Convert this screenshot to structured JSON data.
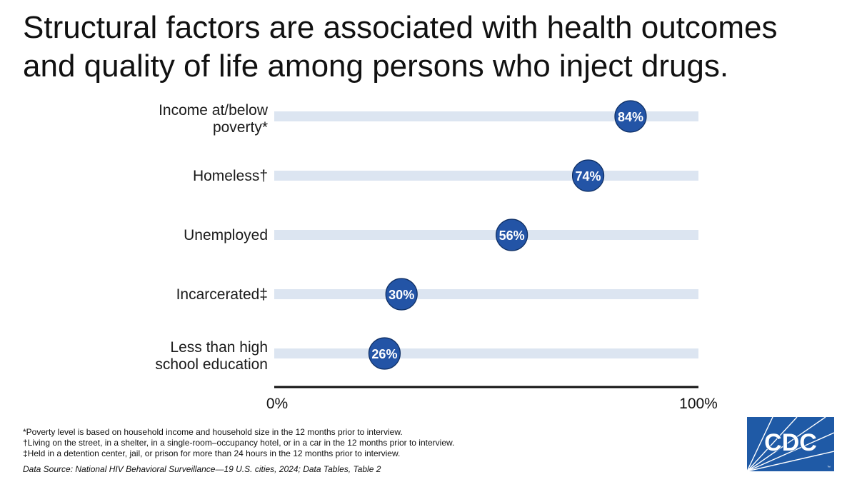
{
  "title_lines": [
    "Structural factors are associated with health outcomes",
    "and quality of life among persons who inject drugs."
  ],
  "chart_data": {
    "type": "dot",
    "categories": [
      [
        "Income at/below",
        "poverty*"
      ],
      [
        "Homeless†"
      ],
      [
        "Unemployed"
      ],
      [
        "Incarcerated‡"
      ],
      [
        "Less than high",
        "school education"
      ]
    ],
    "values": [
      84,
      74,
      56,
      30,
      26
    ],
    "data_labels": [
      "84%",
      "74%",
      "56%",
      "30%",
      "26%"
    ],
    "xlim": [
      0,
      100
    ],
    "x_tick_labels": [
      "0%",
      "100%"
    ],
    "colors": {
      "marker": "#2354a6",
      "track": "#dce5f1",
      "axis": "#111111",
      "label": "#ffffff"
    }
  },
  "footnotes": [
    "*Poverty level is based on household income and household size in the 12 months prior to interview.",
    "†Living on the street, in a shelter, in a single-room–occupancy hotel, or in a car in the 12 months prior to interview.",
    "‡Held in a detention center, jail, or prison for more than 24 hours in the 12 months prior to interview."
  ],
  "source": "Data Source: National HIV Behavioral Surveillance—19 U.S. cities, 2024; Data Tables, Table 2",
  "logo": {
    "text": "CDC",
    "color": "#1f5aa6"
  }
}
